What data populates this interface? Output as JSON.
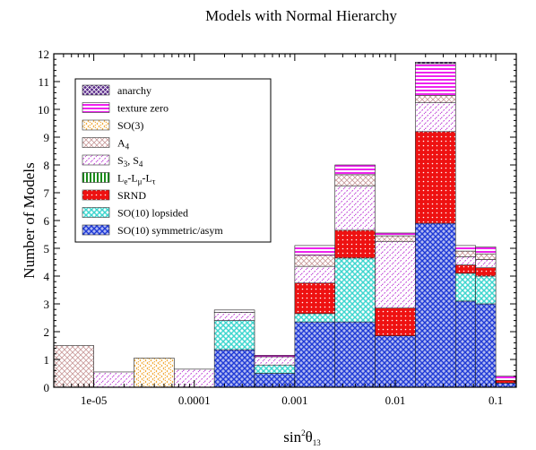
{
  "chart_data": {
    "type": "bar",
    "title": "Models with Normal Hierarchy",
    "xlabel": "sin²θ₁₃",
    "xlabel_base": "sin",
    "xlabel_sup": "2",
    "xlabel_theta": "θ",
    "xlabel_sub": "13",
    "ylabel": "Number of Models",
    "x_scale": "log",
    "xlim": [
      4e-06,
      0.16
    ],
    "ylim": [
      0,
      12
    ],
    "x_ticks": [
      "1e-05",
      "0.0001",
      "0.001",
      "0.01",
      "0.1"
    ],
    "x_tick_values": [
      1e-05,
      0.0001,
      0.001,
      0.01,
      0.1
    ],
    "y_ticks": [
      "0",
      "1",
      "2",
      "3",
      "4",
      "5",
      "6",
      "7",
      "8",
      "9",
      "10",
      "11",
      "12"
    ],
    "grid": false,
    "legend_placement": "top-left",
    "bins_log10": [
      [
        -5.4,
        -5.0
      ],
      [
        -5.0,
        -4.6
      ],
      [
        -4.6,
        -4.2
      ],
      [
        -4.2,
        -3.8
      ],
      [
        -3.8,
        -3.4
      ],
      [
        -3.4,
        -3.0
      ],
      [
        -3.0,
        -2.6
      ],
      [
        -2.6,
        -2.2
      ],
      [
        -2.2,
        -1.8
      ],
      [
        -1.8,
        -1.4
      ],
      [
        -1.4,
        -1.2
      ],
      [
        -1.2,
        -1.0
      ],
      [
        -1.0,
        -0.8
      ]
    ],
    "series": [
      {
        "name": "SO(10) symmetric/asym",
        "color": "#1f3ad6",
        "values": [
          0,
          0,
          0,
          0,
          1.35,
          0.5,
          2.35,
          2.35,
          1.85,
          5.9,
          3.1,
          3.0,
          0.15
        ]
      },
      {
        "name": "SO(10) lopsided",
        "color": "#3fd6cf",
        "values": [
          0,
          0,
          0,
          0,
          1.05,
          0.3,
          0.3,
          2.3,
          0,
          0,
          1.0,
          1.0,
          0
        ]
      },
      {
        "name": "SRND",
        "color": "#ee1111",
        "values": [
          0,
          0,
          0,
          0,
          0,
          0,
          1.1,
          1.0,
          1.0,
          3.3,
          0.3,
          0.3,
          0.1
        ]
      },
      {
        "name": "Le-Lμ-Lτ",
        "color": "#1a8a1a",
        "values": [
          0,
          0,
          0,
          0,
          0,
          0,
          0,
          0,
          0,
          0,
          0,
          0,
          0
        ]
      },
      {
        "name": "S3, S4",
        "color": "#c24ad8",
        "values": [
          0,
          0.55,
          0,
          0.65,
          0.3,
          0.3,
          0.6,
          1.6,
          2.4,
          1.05,
          0.3,
          0.3,
          0
        ]
      },
      {
        "name": "A4",
        "color": "#c99a9a",
        "values": [
          1.5,
          0,
          0,
          0,
          0,
          0,
          0.4,
          0.4,
          0.2,
          0.25,
          0.2,
          0.2,
          0
        ]
      },
      {
        "name": "SO(3)",
        "color": "#f0a020",
        "values": [
          0,
          0,
          1.05,
          0,
          0,
          0,
          0,
          0,
          0,
          0,
          0,
          0,
          0
        ]
      },
      {
        "name": "texture zero",
        "color": "#ee22ee",
        "values": [
          0,
          0,
          0,
          0,
          0.08,
          0.05,
          0.35,
          0.35,
          0.1,
          1.15,
          0.2,
          0.25,
          0.15
        ]
      },
      {
        "name": "anarchy",
        "color": "#5a2a8a",
        "values": [
          0,
          0,
          0,
          0,
          0,
          0,
          0,
          0,
          0,
          0.05,
          0,
          0,
          0
        ]
      }
    ],
    "legend": {
      "entries": [
        {
          "label": "anarchy",
          "color": "#5a2a8a"
        },
        {
          "label": "texture zero",
          "color": "#ee22ee"
        },
        {
          "label": "SO(3)",
          "color": "#f0a020"
        },
        {
          "label": "A",
          "sub": "4",
          "color": "#c99a9a"
        },
        {
          "label": "S",
          "sub": "3",
          "label2": ", S",
          "sub2": "4",
          "color": "#c24ad8"
        },
        {
          "label": "L",
          "sub": "e",
          "label2": "-L",
          "sub2": "μ",
          "label3": "-L",
          "sub3": "τ",
          "color": "#1a8a1a"
        },
        {
          "label": "SRND",
          "color": "#ee1111"
        },
        {
          "label": "SO(10) lopsided",
          "color": "#3fd6cf"
        },
        {
          "label": "SO(10) symmetric/asym",
          "color": "#1f3ad6"
        }
      ]
    }
  }
}
